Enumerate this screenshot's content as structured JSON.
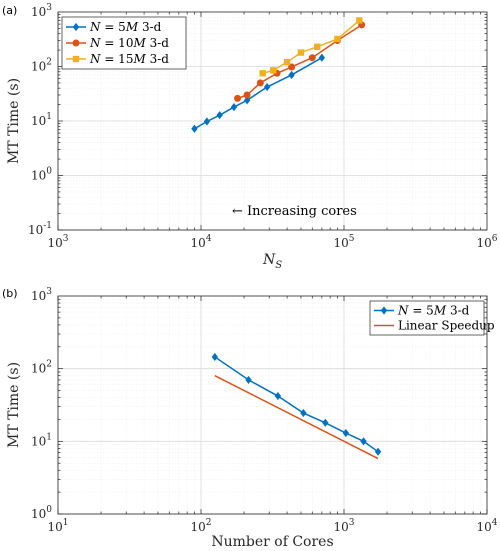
{
  "chart_data": [
    {
      "panel_label": "(a)",
      "type": "line",
      "xlabel": "N",
      "xlabel_sub": "S",
      "ylabel": "MT Time (s)",
      "xscale": "log",
      "yscale": "log",
      "xlim": [
        1000,
        1000000
      ],
      "ylim": [
        0.1,
        1000
      ],
      "grid": true,
      "legend_position": "top-left",
      "x_ticks": [
        {
          "value": 1000,
          "base": "10",
          "exp": "3"
        },
        {
          "value": 10000,
          "base": "10",
          "exp": "4"
        },
        {
          "value": 100000,
          "base": "10",
          "exp": "5"
        },
        {
          "value": 1000000,
          "base": "10",
          "exp": "6"
        }
      ],
      "y_ticks": [
        {
          "value": 0.1,
          "base": "10",
          "exp": "-1"
        },
        {
          "value": 1,
          "base": "10",
          "exp": "0"
        },
        {
          "value": 10,
          "base": "10",
          "exp": "1"
        },
        {
          "value": 100,
          "base": "10",
          "exp": "2"
        },
        {
          "value": 1000,
          "base": "10",
          "exp": "3"
        }
      ],
      "annotation": "← Increasing cores",
      "annotation_at": {
        "x": 45000,
        "y": 0.19
      },
      "series": [
        {
          "name": "N = 5M 3-d",
          "legend": {
            "pre": "N",
            "eq": " = 5",
            "mid": "M",
            "post": " 3-d"
          },
          "color": "#0072BD",
          "marker": "diamond",
          "x": [
            9000,
            11000,
            13500,
            17000,
            21000,
            29000,
            43000,
            70000
          ],
          "y": [
            7.2,
            9.8,
            12.8,
            18,
            24,
            42,
            70,
            145
          ]
        },
        {
          "name": "N = 10M 3-d",
          "legend": {
            "pre": "N",
            "eq": " = 10",
            "mid": "M",
            "post": " 3-d"
          },
          "color": "#D95319",
          "marker": "circle",
          "x": [
            18000,
            21000,
            26000,
            34000,
            43000,
            60000,
            90000,
            133000
          ],
          "y": [
            26,
            30,
            50,
            75,
            98,
            145,
            300,
            580
          ]
        },
        {
          "name": "N = 15M 3-d",
          "legend": {
            "pre": "N",
            "eq": " = 15",
            "mid": "M",
            "post": " 3-d"
          },
          "color": "#EDB120",
          "marker": "square",
          "x": [
            27000,
            32000,
            40000,
            50000,
            65000,
            90000,
            128000
          ],
          "y": [
            75,
            85,
            120,
            180,
            230,
            320,
            700
          ]
        }
      ]
    },
    {
      "panel_label": "(b)",
      "type": "line",
      "xlabel": "Number of Cores",
      "ylabel": "MT Time (s)",
      "xscale": "log",
      "yscale": "log",
      "xlim": [
        10,
        10000
      ],
      "ylim": [
        1,
        1000
      ],
      "grid": true,
      "legend_position": "top-right",
      "x_ticks": [
        {
          "value": 10,
          "base": "10",
          "exp": "1"
        },
        {
          "value": 100,
          "base": "10",
          "exp": "2"
        },
        {
          "value": 1000,
          "base": "10",
          "exp": "3"
        },
        {
          "value": 10000,
          "base": "10",
          "exp": "4"
        }
      ],
      "y_ticks": [
        {
          "value": 1,
          "base": "10",
          "exp": "0"
        },
        {
          "value": 10,
          "base": "10",
          "exp": "1"
        },
        {
          "value": 100,
          "base": "10",
          "exp": "2"
        },
        {
          "value": 1000,
          "base": "10",
          "exp": "3"
        }
      ],
      "series": [
        {
          "name": "N = 5M 3-d",
          "legend": {
            "pre": "N",
            "eq": " = 5",
            "mid": "M",
            "post": " 3-d"
          },
          "color": "#0072BD",
          "marker": "diamond",
          "x": [
            125,
            215,
            345,
            520,
            740,
            1030,
            1370,
            1730
          ],
          "y": [
            145,
            70,
            42,
            24.5,
            18,
            13,
            10,
            7.2
          ]
        },
        {
          "name": "Linear Speedup",
          "legend": {
            "plain": "Linear Speedup"
          },
          "color": "#D95319",
          "marker": "none",
          "x": [
            125,
            1730
          ],
          "y": [
            80,
            5.8
          ]
        }
      ]
    }
  ]
}
